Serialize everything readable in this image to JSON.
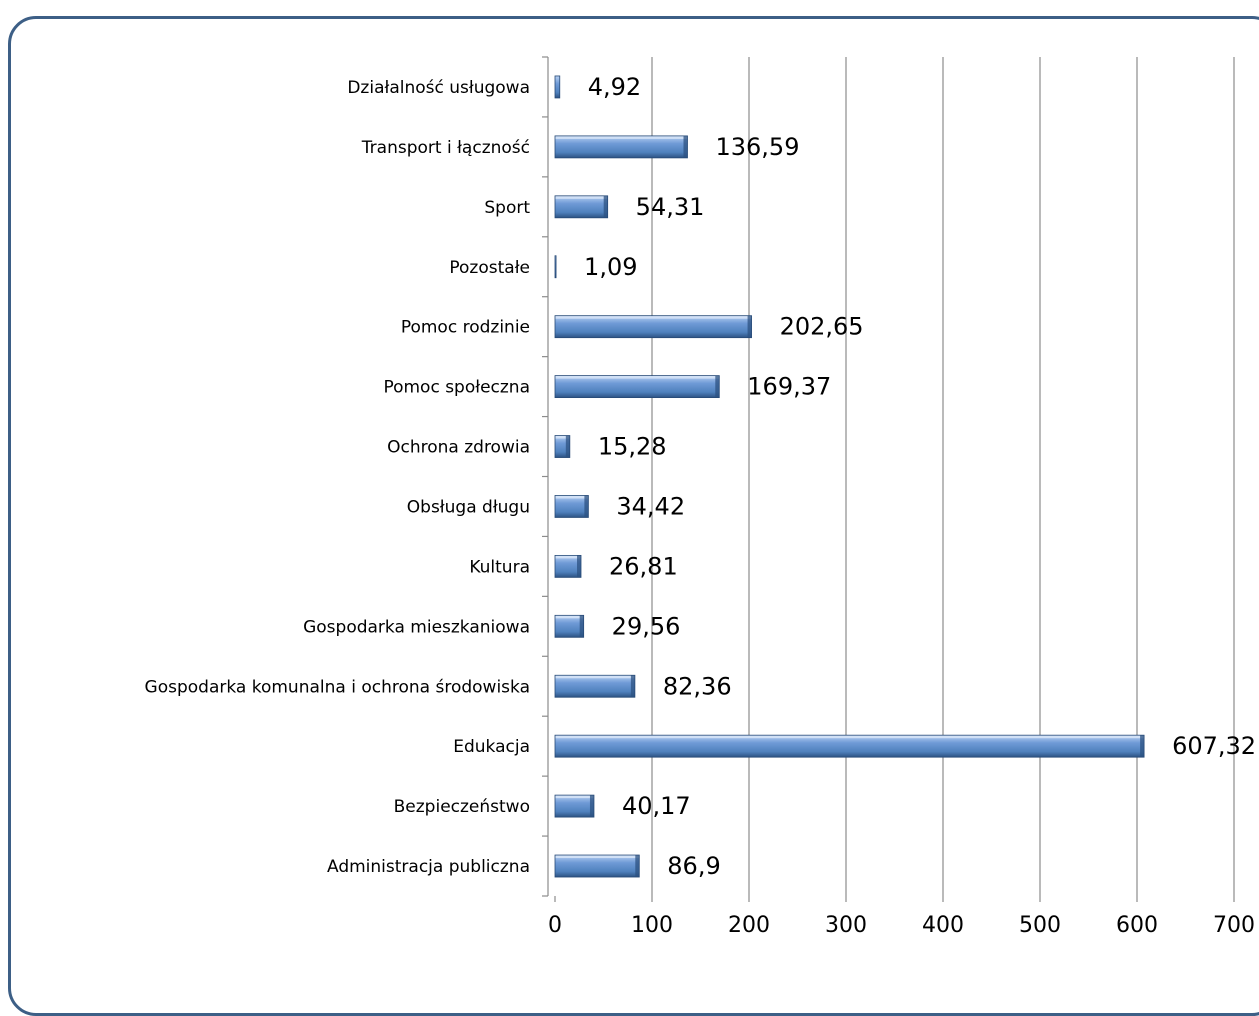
{
  "chart_data": {
    "type": "bar",
    "orientation": "horizontal",
    "categories": [
      "Działalność usługowa",
      "Transport i łączność",
      "Sport",
      "Pozostałe",
      "Pomoc rodzinie",
      "Pomoc społeczna",
      "Ochrona zdrowia",
      "Obsługa długu",
      "Kultura",
      "Gospodarka mieszkaniowa",
      "Gospodarka komunalna i ochrona środowiska",
      "Edukacja",
      "Bezpieczeństwo",
      "Administracja publiczna"
    ],
    "values": [
      4.92,
      136.59,
      54.31,
      1.09,
      202.65,
      169.37,
      15.28,
      34.42,
      26.81,
      29.56,
      82.36,
      607.32,
      40.17,
      86.9
    ],
    "value_labels": [
      "4,92",
      "136,59",
      "54,31",
      "1,09",
      "202,65",
      "169,37",
      "15,28",
      "34,42",
      "26,81",
      "29,56",
      "82,36",
      "607,32",
      "40,17",
      "86,9"
    ],
    "x_ticks": [
      "0",
      "100",
      "200",
      "300",
      "400",
      "500",
      "600",
      "700"
    ],
    "xlim": [
      0,
      700
    ],
    "grid": true,
    "legend": "none",
    "colors": {
      "bar_light": "#8fb4e8",
      "bar": "#4f81bd",
      "bar_dark": "#2c5282",
      "grid": "#8c8c8c",
      "frame": "#3d5f86"
    }
  }
}
